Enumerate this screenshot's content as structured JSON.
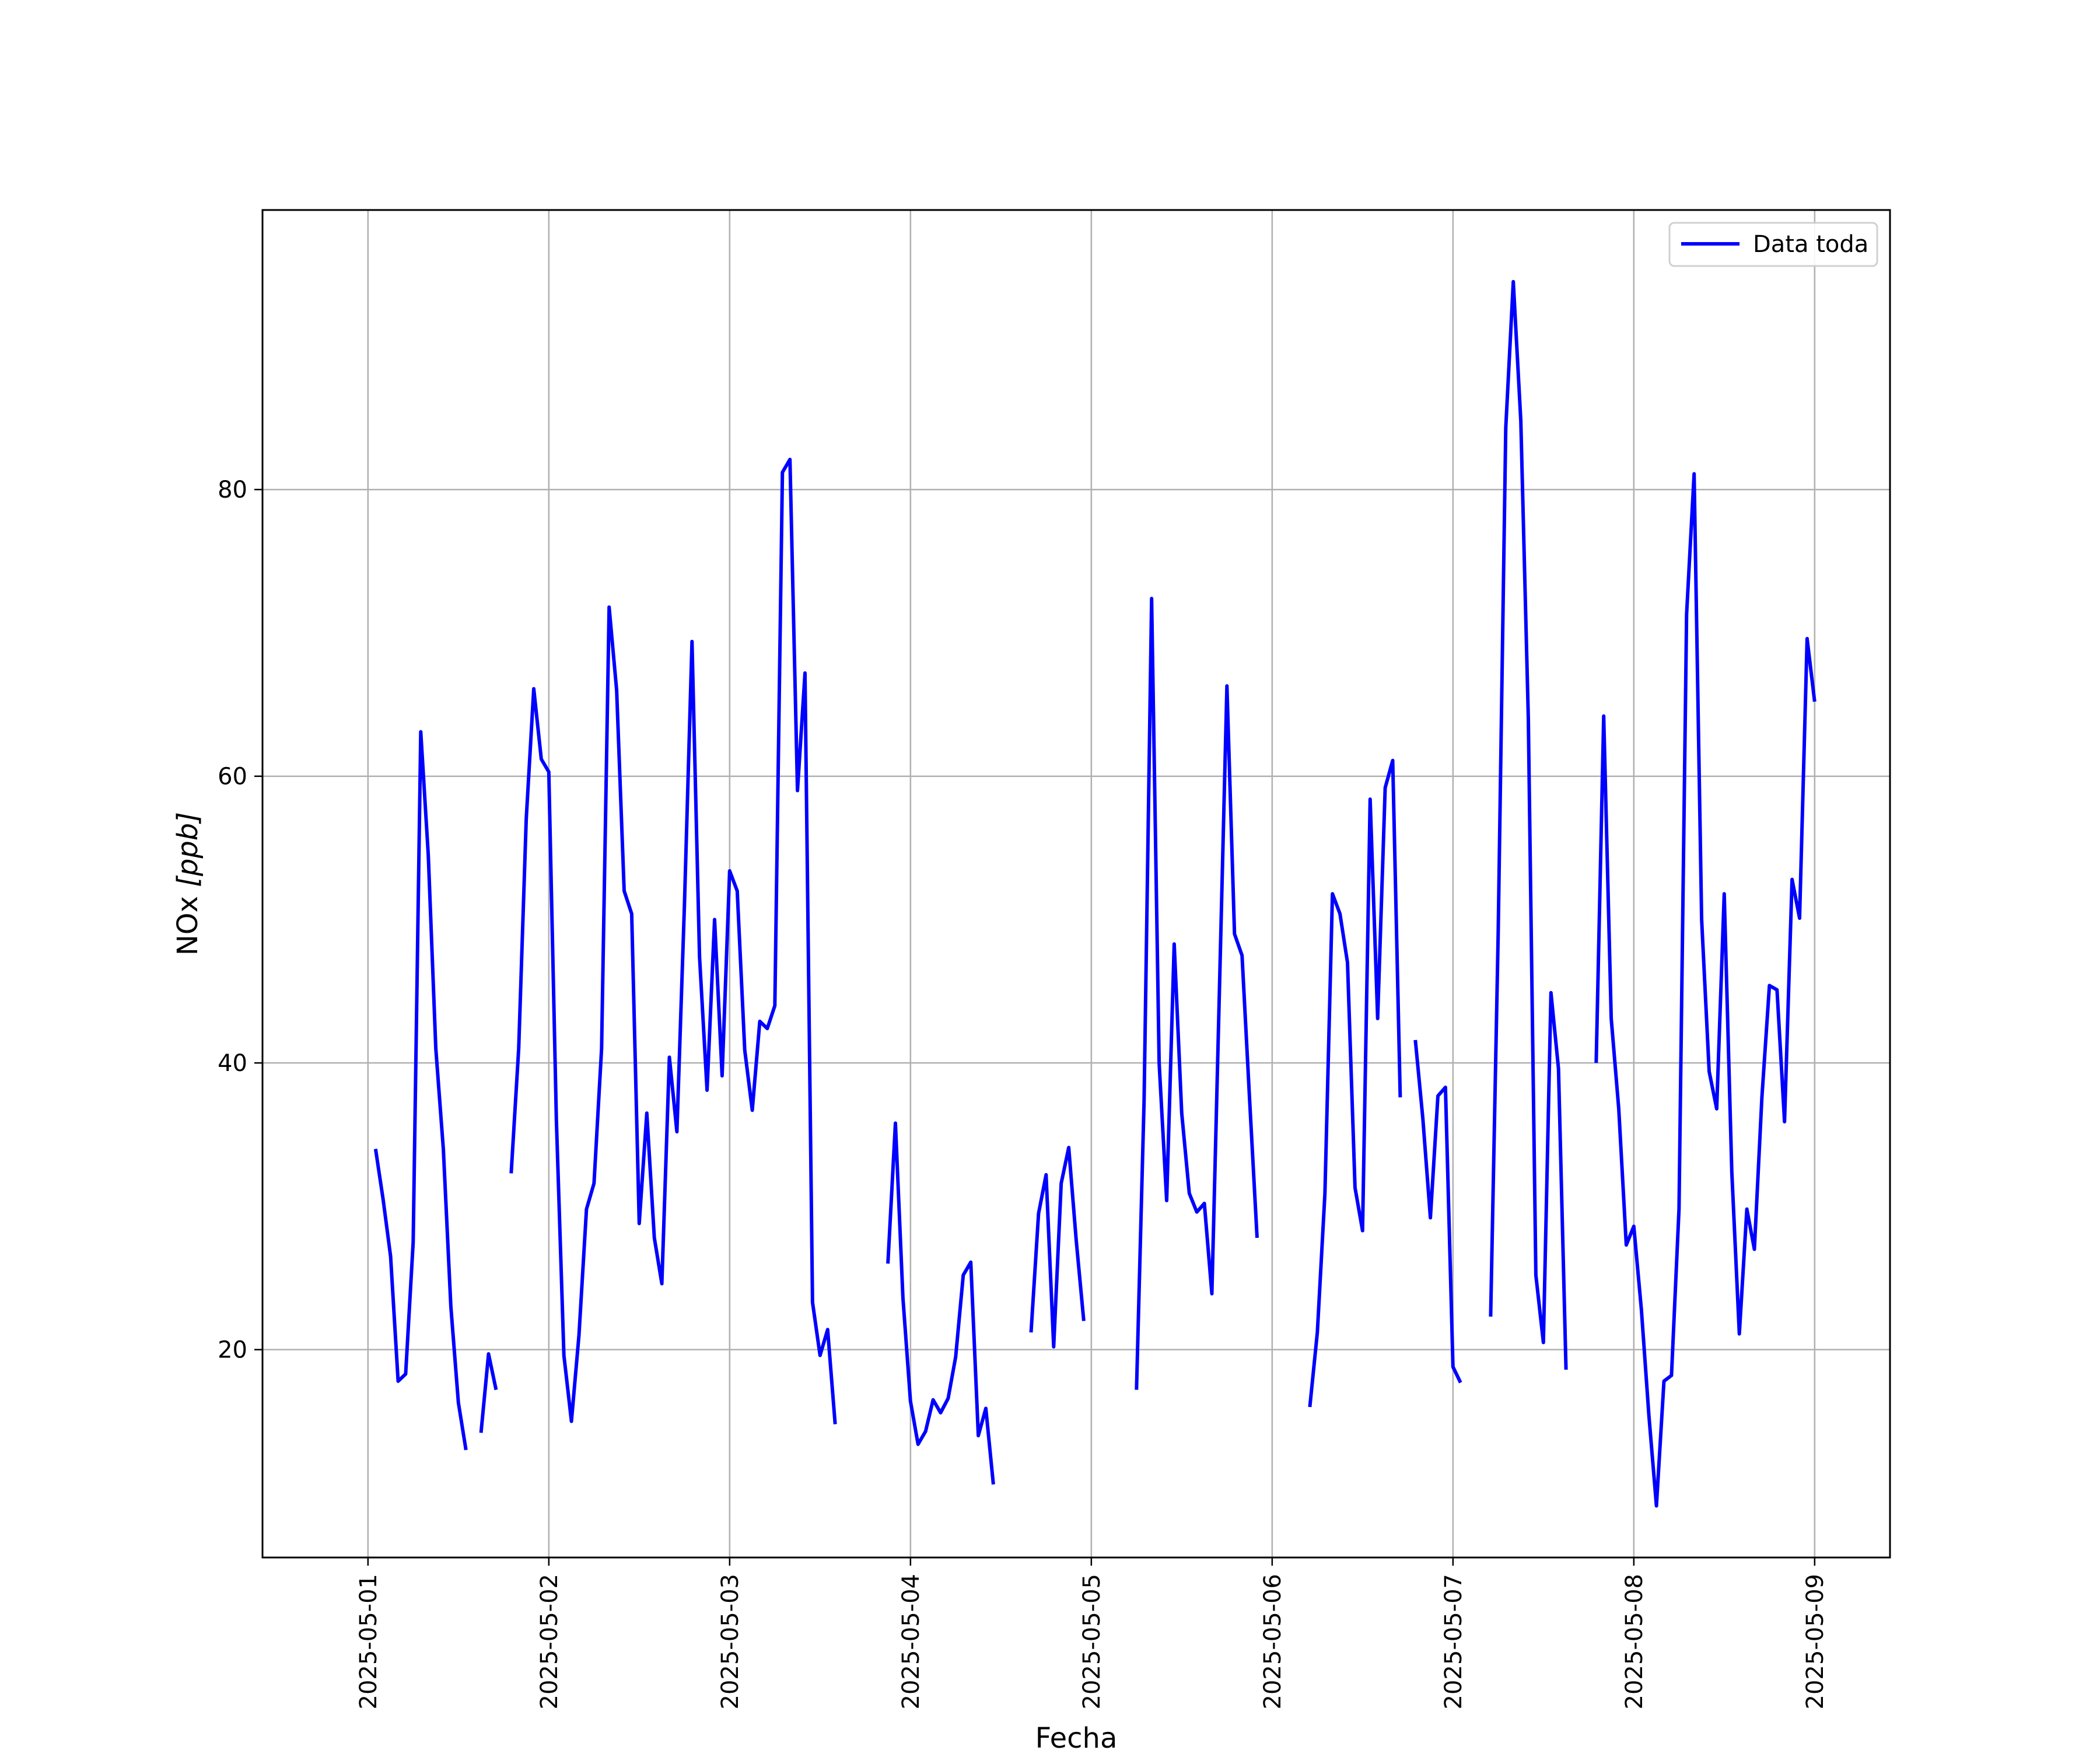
{
  "chart_data": {
    "type": "line",
    "title": "",
    "xlabel": "Fecha",
    "ylabel": "NOx [ppb]",
    "ylabel_parts": {
      "prefix": "NOx ",
      "unit": "[ppb]"
    },
    "xlim": [
      "2025-04-30T10:00",
      "2025-05-09T10:00"
    ],
    "ylim": [
      5.5,
      99.5
    ],
    "x_ticks": [
      "2025-05-01",
      "2025-05-02",
      "2025-05-03",
      "2025-05-04",
      "2025-05-05",
      "2025-05-06",
      "2025-05-07",
      "2025-05-08",
      "2025-05-09"
    ],
    "y_ticks": [
      20,
      40,
      60,
      80
    ],
    "grid": true,
    "legend": {
      "position": "top-right",
      "entries": [
        "Data toda"
      ]
    },
    "colors": {
      "series": "#0000ff",
      "grid": "#b0b0b0",
      "axes": "#000000"
    },
    "series": [
      {
        "name": "Data toda",
        "segments": [
          [
            [
              "2025-05-01T01:00",
              34.0
            ],
            [
              "2025-05-01T02:00",
              30.5
            ],
            [
              "2025-05-01T03:00",
              26.5
            ],
            [
              "2025-05-01T04:00",
              17.8
            ],
            [
              "2025-05-01T05:00",
              18.3
            ],
            [
              "2025-05-01T06:00",
              27.5
            ],
            [
              "2025-05-01T07:00",
              63.1
            ],
            [
              "2025-05-01T08:00",
              54.5
            ],
            [
              "2025-05-01T09:00",
              41.0
            ],
            [
              "2025-05-01T10:00",
              34.0
            ],
            [
              "2025-05-01T11:00",
              23.0
            ],
            [
              "2025-05-01T12:00",
              16.3
            ],
            [
              "2025-05-01T13:00",
              13.0
            ]
          ],
          [
            [
              "2025-05-01T15:00",
              14.2
            ],
            [
              "2025-05-01T16:00",
              19.7
            ],
            [
              "2025-05-01T17:00",
              17.2
            ]
          ],
          [
            [
              "2025-05-01T19:00",
              32.3
            ],
            [
              "2025-05-01T20:00",
              41.0
            ],
            [
              "2025-05-01T21:00",
              57.0
            ],
            [
              "2025-05-01T22:00",
              66.1
            ],
            [
              "2025-05-01T23:00",
              61.2
            ],
            [
              "2025-05-02T00:00",
              60.3
            ],
            [
              "2025-05-02T01:00",
              36.0
            ],
            [
              "2025-05-02T02:00",
              19.6
            ],
            [
              "2025-05-02T03:00",
              15.0
            ],
            [
              "2025-05-02T04:00",
              21.0
            ],
            [
              "2025-05-02T05:00",
              29.8
            ],
            [
              "2025-05-02T06:00",
              31.6
            ],
            [
              "2025-05-02T07:00",
              41.0
            ],
            [
              "2025-05-02T08:00",
              71.8
            ],
            [
              "2025-05-02T09:00",
              66.0
            ],
            [
              "2025-05-02T10:00",
              52.0
            ],
            [
              "2025-05-02T11:00",
              50.4
            ],
            [
              "2025-05-02T12:00",
              28.8
            ],
            [
              "2025-05-02T13:00",
              36.5
            ],
            [
              "2025-05-02T14:00",
              27.8
            ],
            [
              "2025-05-02T15:00",
              24.6
            ],
            [
              "2025-05-02T16:00",
              40.4
            ],
            [
              "2025-05-02T17:00",
              35.2
            ],
            [
              "2025-05-02T18:00",
              51.0
            ],
            [
              "2025-05-02T19:00",
              69.4
            ],
            [
              "2025-05-02T20:00",
              47.4
            ],
            [
              "2025-05-02T21:00",
              38.1
            ],
            [
              "2025-05-02T22:00",
              50.0
            ],
            [
              "2025-05-02T23:00",
              39.1
            ],
            [
              "2025-05-03T00:00",
              53.4
            ],
            [
              "2025-05-03T01:00",
              52.0
            ],
            [
              "2025-05-03T02:00",
              40.9
            ],
            [
              "2025-05-03T03:00",
              36.7
            ],
            [
              "2025-05-03T04:00",
              42.9
            ],
            [
              "2025-05-03T05:00",
              42.4
            ],
            [
              "2025-05-03T06:00",
              44.0
            ],
            [
              "2025-05-03T07:00",
              81.2
            ],
            [
              "2025-05-03T08:00",
              82.1
            ],
            [
              "2025-05-03T09:00",
              59.0
            ],
            [
              "2025-05-03T10:00",
              67.2
            ],
            [
              "2025-05-03T11:00",
              23.3
            ],
            [
              "2025-05-03T12:00",
              19.6
            ],
            [
              "2025-05-03T13:00",
              21.4
            ],
            [
              "2025-05-03T14:00",
              14.8
            ]
          ],
          [
            [
              "2025-05-03T21:00",
              26.0
            ],
            [
              "2025-05-03T22:00",
              35.8
            ],
            [
              "2025-05-03T23:00",
              23.6
            ],
            [
              "2025-05-04T00:00",
              16.4
            ],
            [
              "2025-05-04T01:00",
              13.4
            ],
            [
              "2025-05-04T02:00",
              14.3
            ],
            [
              "2025-05-04T03:00",
              16.5
            ],
            [
              "2025-05-04T04:00",
              15.6
            ],
            [
              "2025-05-04T05:00",
              16.6
            ],
            [
              "2025-05-04T06:00",
              19.5
            ],
            [
              "2025-05-04T07:00",
              25.2
            ],
            [
              "2025-05-04T08:00",
              26.1
            ],
            [
              "2025-05-04T09:00",
              14.0
            ],
            [
              "2025-05-04T10:00",
              15.9
            ],
            [
              "2025-05-04T11:00",
              10.6
            ]
          ],
          [
            [
              "2025-05-04T16:00",
              21.2
            ],
            [
              "2025-05-04T17:00",
              29.5
            ],
            [
              "2025-05-04T18:00",
              32.2
            ],
            [
              "2025-05-04T19:00",
              20.2
            ],
            [
              "2025-05-04T20:00",
              31.6
            ],
            [
              "2025-05-04T21:00",
              34.1
            ],
            [
              "2025-05-04T22:00",
              27.6
            ],
            [
              "2025-05-04T23:00",
              22.0
            ]
          ],
          [
            [
              "2025-05-05T06:00",
              17.2
            ],
            [
              "2025-05-05T07:00",
              37.4
            ],
            [
              "2025-05-05T08:00",
              72.4
            ],
            [
              "2025-05-05T09:00",
              40.0
            ],
            [
              "2025-05-05T10:00",
              30.4
            ],
            [
              "2025-05-05T11:00",
              48.3
            ],
            [
              "2025-05-05T12:00",
              36.5
            ],
            [
              "2025-05-05T13:00",
              30.9
            ],
            [
              "2025-05-05T14:00",
              29.6
            ],
            [
              "2025-05-05T15:00",
              30.2
            ],
            [
              "2025-05-05T16:00",
              23.9
            ],
            [
              "2025-05-05T17:00",
              45.0
            ],
            [
              "2025-05-05T18:00",
              66.3
            ],
            [
              "2025-05-05T19:00",
              49.0
            ],
            [
              "2025-05-05T20:00",
              47.5
            ],
            [
              "2025-05-05T21:00",
              37.5
            ],
            [
              "2025-05-05T22:00",
              27.8
            ]
          ],
          [
            [
              "2025-05-06T05:00",
              16.0
            ],
            [
              "2025-05-06T06:00",
              21.2
            ],
            [
              "2025-05-06T07:00",
              30.9
            ],
            [
              "2025-05-06T08:00",
              51.8
            ],
            [
              "2025-05-06T09:00",
              50.4
            ],
            [
              "2025-05-06T10:00",
              47.0
            ],
            [
              "2025-05-06T11:00",
              31.3
            ],
            [
              "2025-05-06T12:00",
              28.3
            ],
            [
              "2025-05-06T13:00",
              58.4
            ],
            [
              "2025-05-06T14:00",
              43.1
            ],
            [
              "2025-05-06T15:00",
              59.2
            ],
            [
              "2025-05-06T16:00",
              61.1
            ],
            [
              "2025-05-06T17:00",
              37.6
            ]
          ],
          [
            [
              "2025-05-06T19:00",
              41.6
            ],
            [
              "2025-05-06T20:00",
              36.1
            ],
            [
              "2025-05-06T21:00",
              29.2
            ],
            [
              "2025-05-06T22:00",
              37.7
            ],
            [
              "2025-05-06T23:00",
              38.3
            ],
            [
              "2025-05-07T00:00",
              18.8
            ],
            [
              "2025-05-07T01:00",
              17.7
            ]
          ],
          [
            [
              "2025-05-07T05:00",
              22.3
            ],
            [
              "2025-05-07T06:00",
              49.0
            ],
            [
              "2025-05-07T07:00",
              84.3
            ],
            [
              "2025-05-07T08:00",
              94.5
            ],
            [
              "2025-05-07T09:00",
              84.8
            ],
            [
              "2025-05-07T10:00",
              64.0
            ],
            [
              "2025-05-07T11:00",
              25.2
            ],
            [
              "2025-05-07T12:00",
              20.5
            ],
            [
              "2025-05-07T13:00",
              44.9
            ],
            [
              "2025-05-07T14:00",
              39.6
            ],
            [
              "2025-05-07T15:00",
              18.6
            ]
          ],
          [
            [
              "2025-05-07T19:00",
              40.0
            ],
            [
              "2025-05-07T20:00",
              64.2
            ],
            [
              "2025-05-07T21:00",
              43.1
            ],
            [
              "2025-05-07T22:00",
              36.8
            ],
            [
              "2025-05-07T23:00",
              27.3
            ],
            [
              "2025-05-08T00:00",
              28.6
            ],
            [
              "2025-05-08T01:00",
              22.8
            ],
            [
              "2025-05-08T02:00",
              15.4
            ],
            [
              "2025-05-08T03:00",
              9.1
            ],
            [
              "2025-05-08T04:00",
              17.8
            ],
            [
              "2025-05-08T05:00",
              18.2
            ],
            [
              "2025-05-08T06:00",
              29.8
            ],
            [
              "2025-05-08T07:00",
              71.3
            ],
            [
              "2025-05-08T08:00",
              81.1
            ],
            [
              "2025-05-08T09:00",
              50.0
            ],
            [
              "2025-05-08T10:00",
              39.4
            ],
            [
              "2025-05-08T11:00",
              36.8
            ],
            [
              "2025-05-08T12:00",
              51.8
            ],
            [
              "2025-05-08T13:00",
              32.4
            ],
            [
              "2025-05-08T14:00",
              21.1
            ],
            [
              "2025-05-08T15:00",
              29.8
            ],
            [
              "2025-05-08T16:00",
              27.0
            ],
            [
              "2025-05-08T17:00",
              37.6
            ],
            [
              "2025-05-08T18:00",
              45.4
            ],
            [
              "2025-05-08T19:00",
              45.1
            ],
            [
              "2025-05-08T20:00",
              35.9
            ],
            [
              "2025-05-08T21:00",
              52.8
            ],
            [
              "2025-05-08T22:00",
              50.1
            ],
            [
              "2025-05-08T23:00",
              69.6
            ],
            [
              "2025-05-09T00:00",
              65.2
            ]
          ]
        ]
      }
    ]
  }
}
